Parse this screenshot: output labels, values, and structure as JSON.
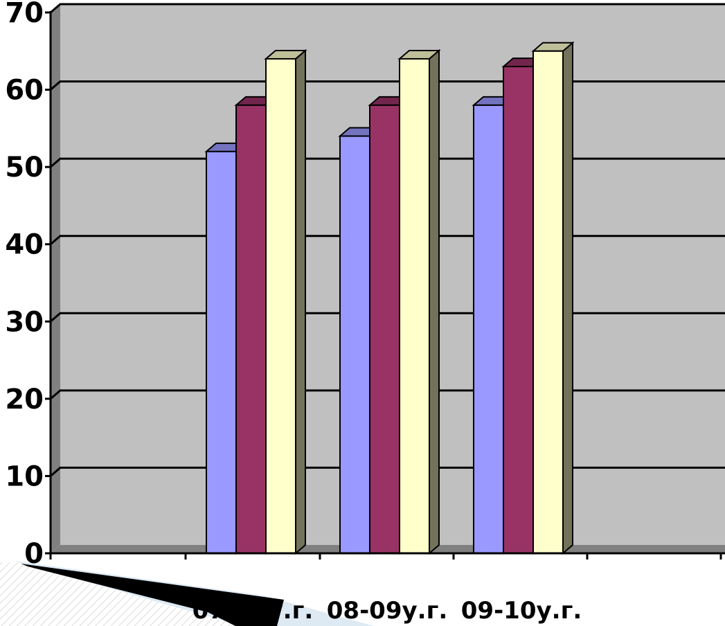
{
  "chart_data": {
    "type": "bar",
    "categories": [
      "07-08у.г.",
      "08-09у.г.",
      "09-10у.г."
    ],
    "series": [
      {
        "values": [
          52,
          54,
          58
        ],
        "color": "#9999ff"
      },
      {
        "values": [
          58,
          58,
          63
        ],
        "color": "#993366"
      },
      {
        "values": [
          64,
          64,
          65
        ],
        "color": "#ffffcc"
      }
    ],
    "ylim": [
      0,
      70
    ],
    "yticks": [
      "0",
      "10",
      "20",
      "30",
      "40",
      "50",
      "60",
      "70"
    ],
    "grid": true,
    "three_d": true,
    "colors": {
      "plot_background": "#c0c0c0",
      "wall_side": "#808080",
      "floor": "#808080",
      "gridline": "#000000"
    }
  }
}
